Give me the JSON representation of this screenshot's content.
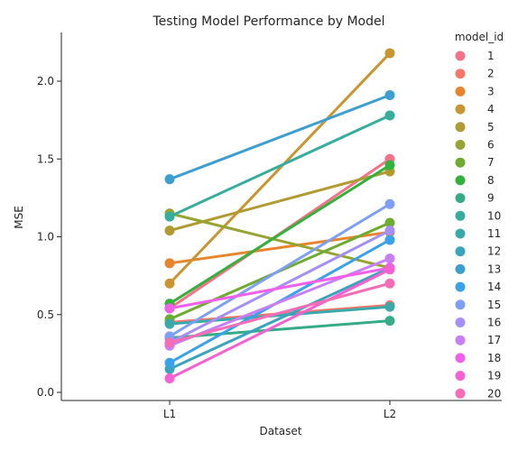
{
  "chart_data": {
    "type": "line",
    "title": "Testing Model Performance by Model",
    "xlabel": "Dataset",
    "ylabel": "MSE",
    "categories": [
      "L1",
      "L2"
    ],
    "ylim": [
      -0.05,
      2.3
    ],
    "yticks": [
      "0.0",
      "0.5",
      "1.0",
      "1.5",
      "2.0"
    ],
    "grid": false,
    "legend_position": "right",
    "legend_title": "model_id",
    "series": [
      {
        "name": "1",
        "color": "#f77189",
        "values": [
          0.54,
          1.5
        ]
      },
      {
        "name": "2",
        "color": "#f6776a",
        "values": [
          0.45,
          0.56
        ]
      },
      {
        "name": "3",
        "color": "#e7852c",
        "values": [
          0.83,
          1.03
        ]
      },
      {
        "name": "4",
        "color": "#c89530",
        "values": [
          0.7,
          2.18
        ]
      },
      {
        "name": "5",
        "color": "#b09a31",
        "values": [
          1.04,
          1.42
        ]
      },
      {
        "name": "6",
        "color": "#97a431",
        "values": [
          1.15,
          0.8
        ]
      },
      {
        "name": "7",
        "color": "#6eab31",
        "values": [
          0.47,
          1.09
        ]
      },
      {
        "name": "8",
        "color": "#32b13c",
        "values": [
          0.57,
          1.46
        ]
      },
      {
        "name": "9",
        "color": "#35ab86",
        "values": [
          0.35,
          0.46
        ]
      },
      {
        "name": "10",
        "color": "#37ad9d",
        "values": [
          1.13,
          1.78
        ]
      },
      {
        "name": "11",
        "color": "#39a9aa",
        "values": [
          0.44,
          0.55
        ]
      },
      {
        "name": "12",
        "color": "#3ba4bd",
        "values": [
          0.15,
          0.8
        ]
      },
      {
        "name": "13",
        "color": "#3d9fd0",
        "values": [
          1.37,
          1.91
        ]
      },
      {
        "name": "14",
        "color": "#3aa2ea",
        "values": [
          0.19,
          0.98
        ]
      },
      {
        "name": "15",
        "color": "#7f9ff4",
        "values": [
          0.36,
          1.21
        ]
      },
      {
        "name": "16",
        "color": "#a58ff4",
        "values": [
          0.32,
          1.04
        ]
      },
      {
        "name": "17",
        "color": "#c97ff4",
        "values": [
          0.3,
          0.86
        ]
      },
      {
        "name": "18",
        "color": "#f160ea",
        "values": [
          0.54,
          0.8
        ]
      },
      {
        "name": "19",
        "color": "#f561d3",
        "values": [
          0.09,
          0.79
        ]
      },
      {
        "name": "20",
        "color": "#f56db6",
        "values": [
          0.32,
          0.7
        ]
      }
    ]
  }
}
